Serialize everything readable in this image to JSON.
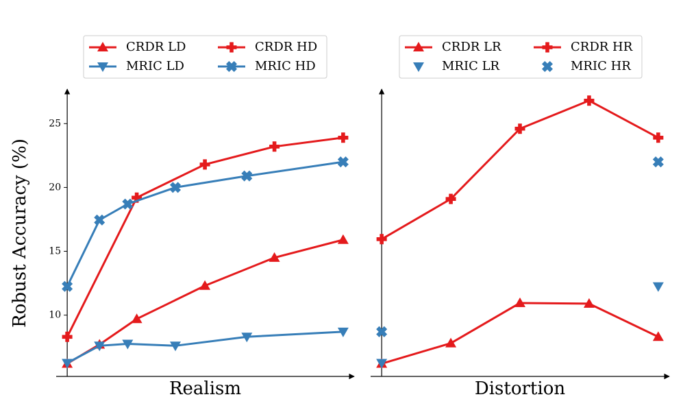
{
  "chart_data": [
    {
      "type": "line",
      "xlabel": "Realism",
      "ylabel": "Robust Accuracy (%)",
      "xlim": [
        -0.04,
        1.04
      ],
      "ylim": [
        5.2,
        27.7
      ],
      "yticks": [
        10,
        15,
        20,
        25
      ],
      "legend": "upper center",
      "legend_columns": 2,
      "series": [
        {
          "name": "CRDR LD",
          "color": "#e41a1c",
          "marker": "triangle-up",
          "linestyle": "solid",
          "x": [
            0,
            0.117,
            0.252,
            0.499,
            0.751,
            1
          ],
          "values": [
            6.2,
            7.7,
            9.7,
            12.3,
            14.5,
            15.9
          ]
        },
        {
          "name": "MRIC LD",
          "color": "#377eb8",
          "marker": "triangle-down",
          "linestyle": "solid",
          "x": [
            0,
            0.117,
            0.219,
            0.392,
            0.651,
            1
          ],
          "values": [
            6.25,
            7.6,
            7.75,
            7.6,
            8.3,
            8.7
          ]
        },
        {
          "name": "CRDR HD",
          "color": "#e41a1c",
          "marker": "plus",
          "linestyle": "solid",
          "x": [
            0,
            0.252,
            0.499,
            0.751,
            1
          ],
          "values": [
            8.3,
            19.2,
            21.8,
            23.2,
            23.9
          ]
        },
        {
          "name": "MRIC HD",
          "color": "#377eb8",
          "marker": "x",
          "linestyle": "solid",
          "x": [
            0,
            0.117,
            0.219,
            0.392,
            0.651,
            1
          ],
          "values": [
            12.25,
            17.45,
            18.7,
            20.0,
            20.9,
            22.0
          ]
        }
      ]
    },
    {
      "type": "line",
      "xlabel": "Distortion",
      "xlim": [
        -0.04,
        1.04
      ],
      "ylim": [
        5.2,
        27.7
      ],
      "legend": "upper center",
      "legend_columns": 2,
      "series": [
        {
          "name": "CRDR LR",
          "color": "#e41a1c",
          "marker": "triangle-up",
          "linestyle": "solid",
          "x": [
            0,
            0.25,
            0.5,
            0.75,
            1
          ],
          "values": [
            6.2,
            7.8,
            10.95,
            10.9,
            8.3
          ]
        },
        {
          "name": "MRIC LR",
          "color": "#377eb8",
          "marker": "triangle-down",
          "linestyle": "none",
          "x": [
            0,
            1
          ],
          "values": [
            6.25,
            12.25
          ]
        },
        {
          "name": "CRDR HR",
          "color": "#e41a1c",
          "marker": "plus",
          "linestyle": "solid",
          "x": [
            0,
            0.25,
            0.5,
            0.75,
            1
          ],
          "values": [
            15.95,
            19.1,
            24.6,
            26.8,
            23.9
          ]
        },
        {
          "name": "MRIC HR",
          "color": "#377eb8",
          "marker": "x",
          "linestyle": "none",
          "x": [
            0,
            1
          ],
          "values": [
            8.7,
            22.0
          ]
        }
      ]
    }
  ]
}
